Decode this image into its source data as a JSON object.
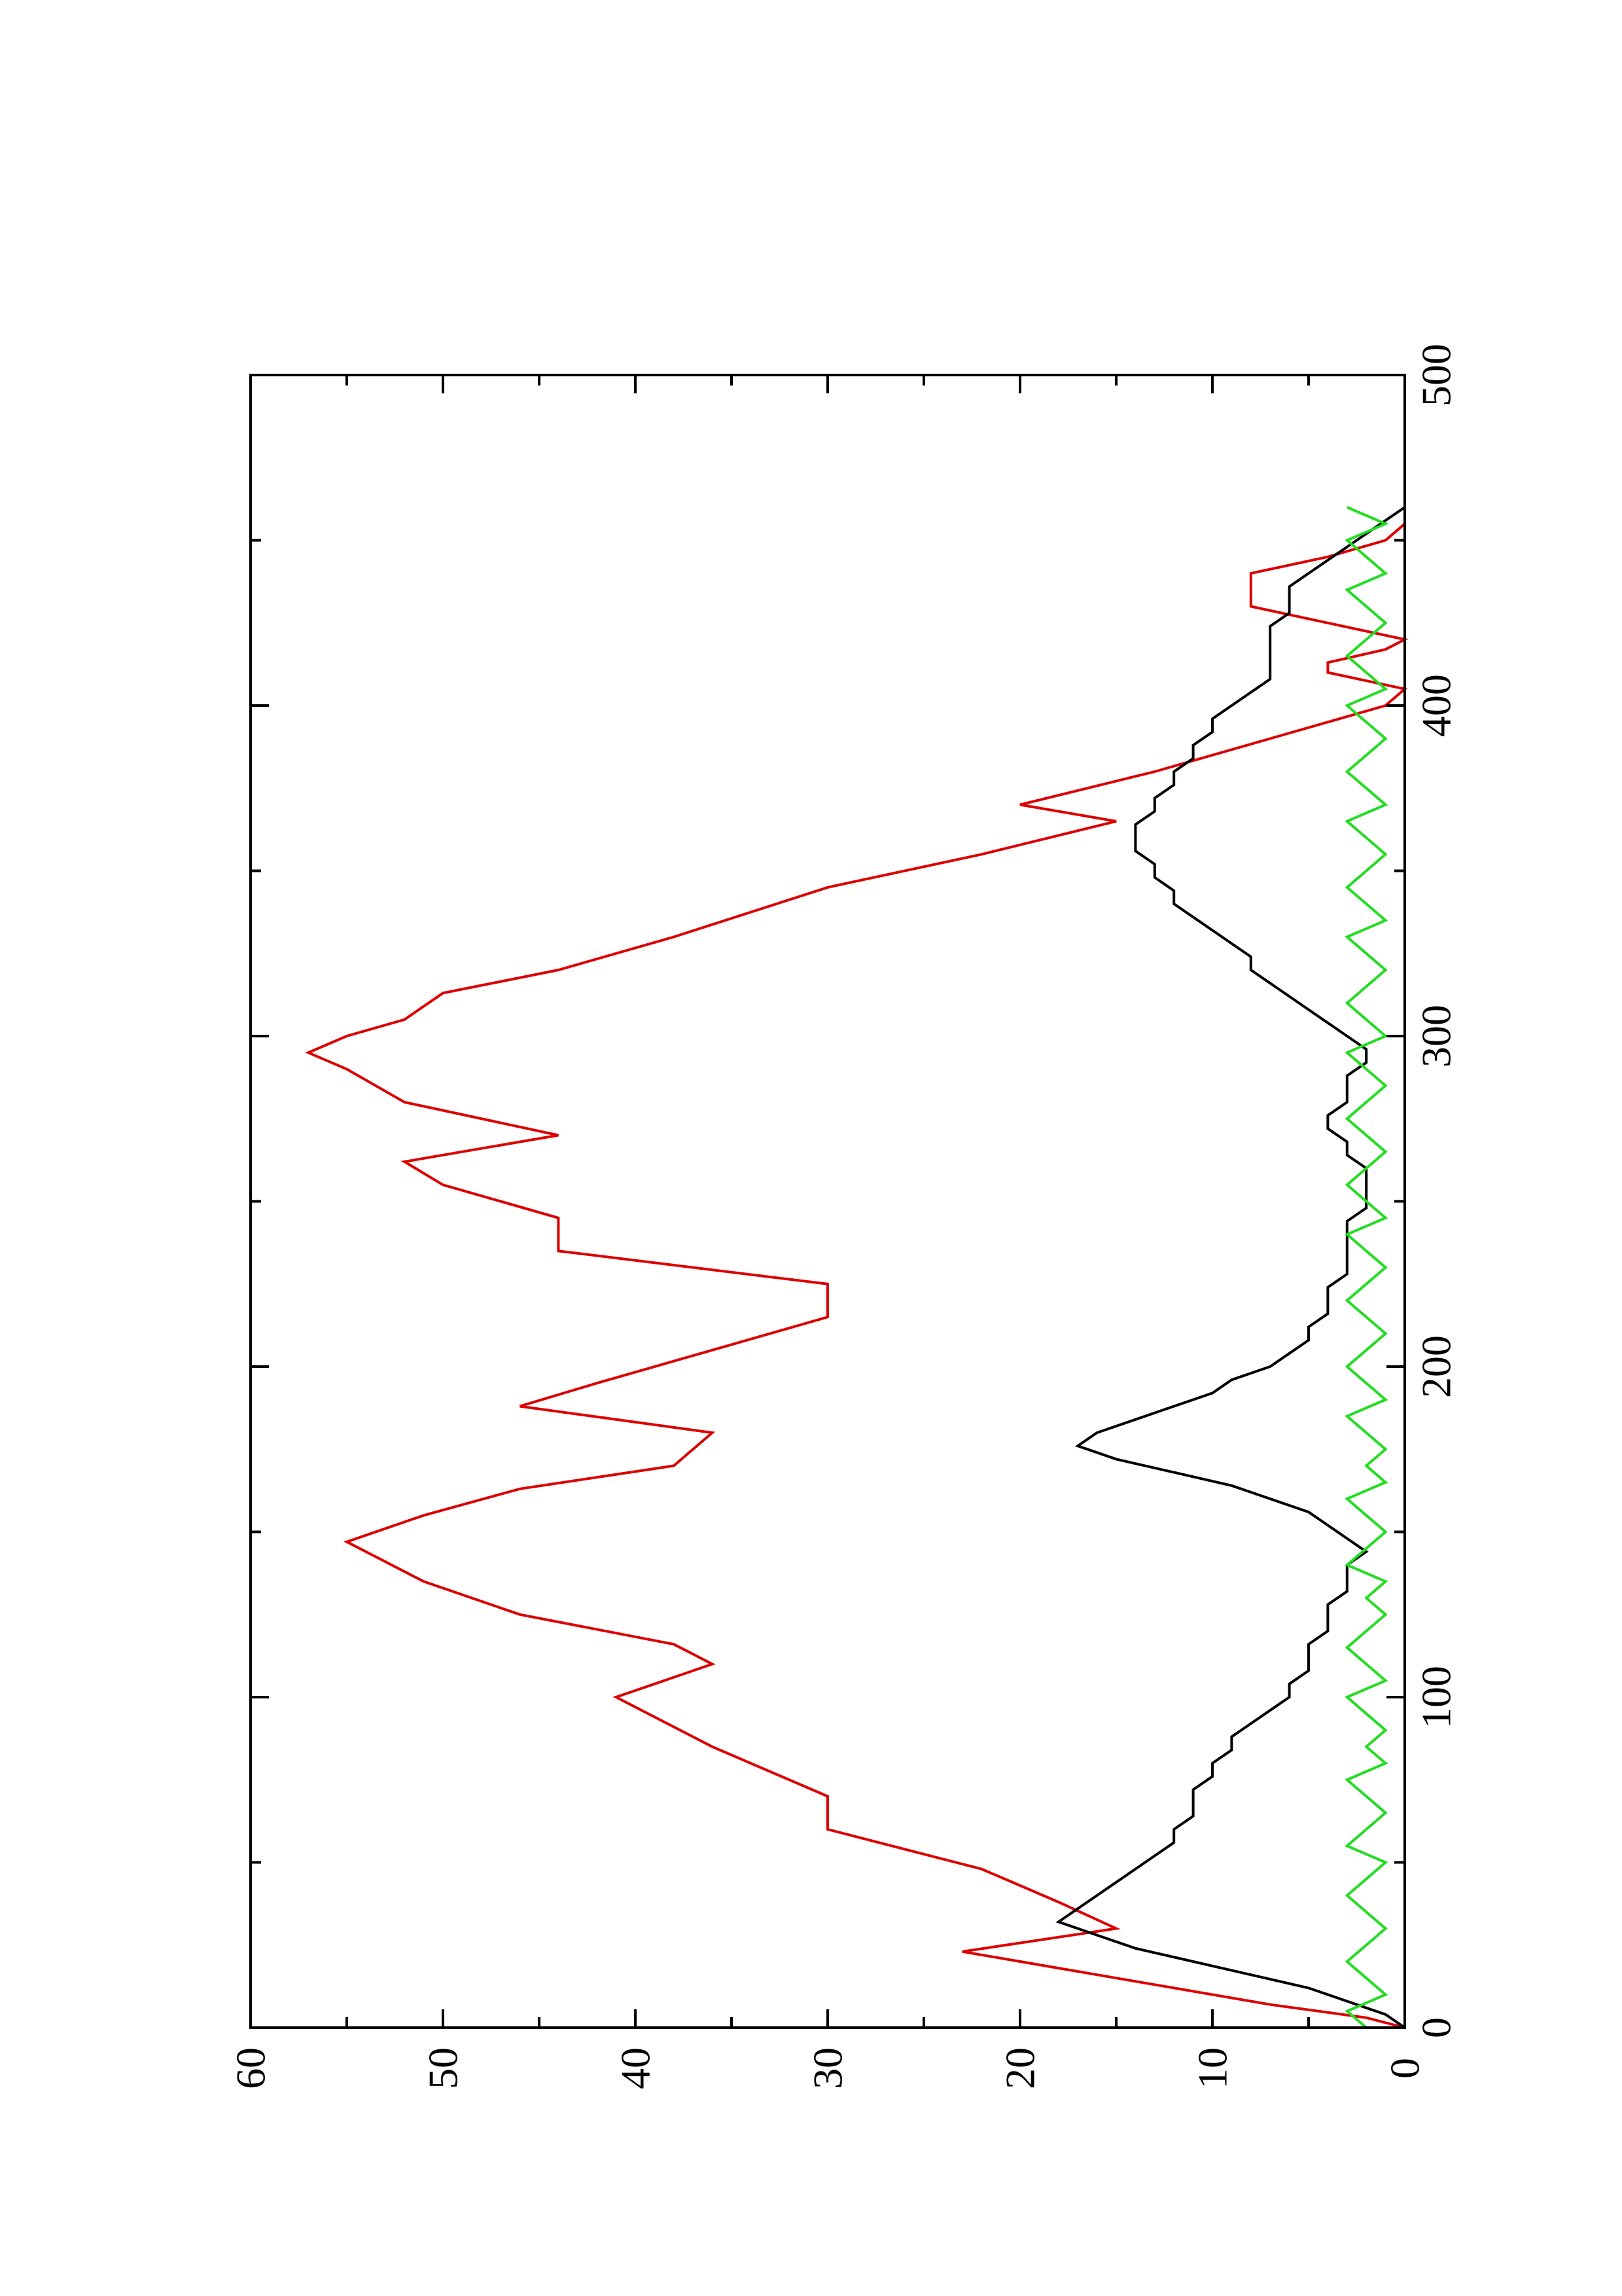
{
  "chart_data": {
    "type": "line",
    "title": "",
    "xlabel": "",
    "ylabel": "",
    "xlim": [
      0,
      500
    ],
    "ylim": [
      0,
      60
    ],
    "x_ticks": [
      "0",
      "100",
      "200",
      "300",
      "400",
      "500"
    ],
    "y_ticks": [
      "0",
      "10",
      "20",
      "30",
      "40",
      "50",
      "60"
    ],
    "grid": false,
    "legend": "none",
    "orientation": "rotated-90-counterclockwise",
    "series": [
      {
        "color": "#dd0000",
        "style": "stepped",
        "x": [
          0,
          3,
          7,
          13,
          23,
          30,
          38,
          48,
          60,
          70,
          85,
          100,
          110,
          116,
          125,
          135,
          147,
          155,
          163,
          170,
          180,
          188,
          195,
          205,
          215,
          225,
          235,
          245,
          255,
          262,
          270,
          280,
          290,
          295,
          300,
          305,
          313,
          320,
          330,
          345,
          355,
          365,
          370,
          380,
          390,
          400,
          405,
          410,
          413,
          417,
          420,
          425,
          430,
          440,
          445,
          450,
          455,
          460
        ],
        "y": [
          0,
          2,
          7,
          13,
          23,
          15,
          18,
          22,
          30,
          30,
          36,
          41,
          36,
          38,
          46,
          51,
          55,
          51,
          46,
          38,
          36,
          46,
          42,
          36,
          30,
          30,
          44,
          44,
          50,
          52,
          44,
          52,
          55,
          57,
          55,
          52,
          50,
          44,
          38,
          30,
          22,
          15,
          20,
          13,
          7,
          1,
          0,
          4,
          4,
          1,
          0,
          4,
          8,
          8,
          4,
          1,
          0,
          0
        ]
      },
      {
        "color": "#000000",
        "style": "line",
        "x": [
          0,
          4,
          8,
          12,
          16,
          20,
          24,
          28,
          32,
          36,
          40,
          44,
          48,
          52,
          56,
          60,
          64,
          68,
          72,
          76,
          80,
          84,
          88,
          92,
          96,
          100,
          104,
          108,
          112,
          116,
          120,
          124,
          128,
          132,
          136,
          140,
          144,
          148,
          152,
          156,
          160,
          164,
          168,
          172,
          176,
          180,
          184,
          188,
          192,
          196,
          200,
          204,
          208,
          212,
          216,
          220,
          224,
          228,
          232,
          236,
          240,
          244,
          248,
          252,
          256,
          260,
          264,
          268,
          272,
          276,
          280,
          284,
          288,
          292,
          296,
          300,
          304,
          308,
          312,
          316,
          320,
          324,
          328,
          332,
          336,
          340,
          344,
          348,
          352,
          356,
          360,
          364,
          368,
          372,
          376,
          380,
          384,
          388,
          392,
          396,
          400,
          404,
          408,
          412,
          416,
          420,
          424,
          428,
          432,
          436,
          440,
          444,
          448,
          452,
          456,
          460
        ],
        "y": [
          0,
          1,
          3,
          5,
          8,
          11,
          14,
          16,
          18,
          17,
          16,
          15,
          14,
          13,
          12,
          12,
          11,
          11,
          11,
          10,
          10,
          9,
          9,
          8,
          7,
          6,
          6,
          5,
          5,
          5,
          4,
          4,
          4,
          3,
          3,
          3,
          2,
          3,
          4,
          5,
          7,
          9,
          12,
          15,
          17,
          16,
          14,
          12,
          10,
          9,
          7,
          6,
          5,
          5,
          4,
          4,
          4,
          3,
          3,
          3,
          3,
          3,
          2,
          2,
          2,
          2,
          3,
          3,
          4,
          4,
          3,
          3,
          3,
          2,
          2,
          3,
          4,
          5,
          6,
          7,
          8,
          8,
          9,
          10,
          11,
          12,
          12,
          13,
          13,
          14,
          14,
          14,
          13,
          13,
          12,
          12,
          11,
          11,
          10,
          10,
          9,
          8,
          7,
          7,
          7,
          7,
          7,
          6,
          6,
          6,
          5,
          4,
          3,
          2,
          1,
          0
        ]
      },
      {
        "color": "#22dd22",
        "style": "line",
        "x": [
          0,
          5,
          10,
          15,
          20,
          25,
          30,
          35,
          40,
          45,
          50,
          55,
          60,
          65,
          70,
          75,
          80,
          85,
          90,
          95,
          100,
          105,
          110,
          115,
          120,
          125,
          130,
          135,
          140,
          145,
          150,
          155,
          160,
          165,
          170,
          175,
          180,
          185,
          190,
          195,
          200,
          205,
          210,
          215,
          220,
          225,
          230,
          235,
          240,
          245,
          250,
          255,
          260,
          265,
          270,
          275,
          280,
          285,
          290,
          295,
          300,
          305,
          310,
          315,
          320,
          325,
          330,
          335,
          340,
          345,
          350,
          355,
          360,
          365,
          370,
          375,
          380,
          385,
          390,
          395,
          400,
          405,
          410,
          415,
          420,
          425,
          430,
          435,
          440,
          445,
          450,
          455,
          460
        ],
        "y": [
          2,
          3,
          1,
          2,
          3,
          2,
          1,
          2,
          3,
          2,
          1,
          3,
          2,
          1,
          2,
          3,
          1,
          2,
          1,
          2,
          3,
          1,
          2,
          3,
          2,
          1,
          2,
          1,
          3,
          2,
          1,
          2,
          3,
          1,
          2,
          1,
          2,
          3,
          1,
          2,
          3,
          2,
          1,
          2,
          3,
          2,
          1,
          2,
          3,
          1,
          2,
          3,
          2,
          1,
          2,
          3,
          2,
          1,
          2,
          3,
          1,
          2,
          3,
          2,
          1,
          2,
          3,
          1,
          2,
          3,
          2,
          1,
          2,
          3,
          1,
          2,
          3,
          2,
          1,
          2,
          3,
          1,
          2,
          3,
          2,
          1,
          2,
          3,
          1,
          2,
          3,
          1,
          3
        ]
      }
    ]
  }
}
